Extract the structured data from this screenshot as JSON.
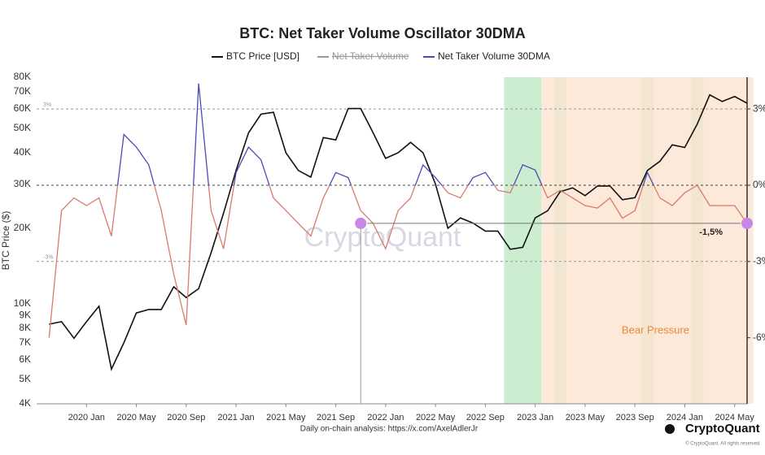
{
  "chart_data": {
    "type": "line",
    "title": "BTC: Net Taker Volume Oscillator 30DMA",
    "y_label": "BTC Price ($)",
    "log_y": true,
    "x": [
      "2019-10",
      "2019-11",
      "2019-12",
      "2020-01",
      "2020-02",
      "2020-03",
      "2020-04",
      "2020-05",
      "2020-06",
      "2020-07",
      "2020-08",
      "2020-09",
      "2020-10",
      "2020-11",
      "2020-12",
      "2021-01",
      "2021-02",
      "2021-03",
      "2021-04",
      "2021-05",
      "2021-06",
      "2021-07",
      "2021-08",
      "2021-09",
      "2021-10",
      "2021-11",
      "2021-12",
      "2022-01",
      "2022-02",
      "2022-03",
      "2022-04",
      "2022-05",
      "2022-06",
      "2022-07",
      "2022-08",
      "2022-09",
      "2022-10",
      "2022-11",
      "2022-12",
      "2023-01",
      "2023-02",
      "2023-03",
      "2023-04",
      "2023-05",
      "2023-06",
      "2023-07",
      "2023-08",
      "2023-09",
      "2023-10",
      "2023-11",
      "2023-12",
      "2024-01",
      "2024-02",
      "2024-03",
      "2024-04",
      "2024-05",
      "2024-06"
    ],
    "xlim": [
      "2019-09",
      "2024-06"
    ],
    "xticks": [
      {
        "value": "2020-01",
        "label": "2020 Jan"
      },
      {
        "value": "2020-05",
        "label": "2020 May"
      },
      {
        "value": "2020-09",
        "label": "2020 Sep"
      },
      {
        "value": "2021-01",
        "label": "2021 Jan"
      },
      {
        "value": "2021-05",
        "label": "2021 May"
      },
      {
        "value": "2021-09",
        "label": "2021 Sep"
      },
      {
        "value": "2022-01",
        "label": "2022 Jan"
      },
      {
        "value": "2022-05",
        "label": "2022 May"
      },
      {
        "value": "2022-09",
        "label": "2022 Sep"
      },
      {
        "value": "2023-01",
        "label": "2023 Jan"
      },
      {
        "value": "2023-05",
        "label": "2023 May"
      },
      {
        "value": "2023-09",
        "label": "2023 Sep"
      },
      {
        "value": "2024-01",
        "label": "2024 Jan"
      },
      {
        "value": "2024-05",
        "label": "2024 May"
      }
    ],
    "ylim": [
      4000,
      80000
    ],
    "yticks": [
      {
        "value": 4000,
        "label": "4K"
      },
      {
        "value": 5000,
        "label": "5K"
      },
      {
        "value": 6000,
        "label": "6K"
      },
      {
        "value": 7000,
        "label": "7K"
      },
      {
        "value": 8000,
        "label": "8K"
      },
      {
        "value": 9000,
        "label": "9K"
      },
      {
        "value": 10000,
        "label": "10K"
      },
      {
        "value": 20000,
        "label": "20K"
      },
      {
        "value": 30000,
        "label": "30K"
      },
      {
        "value": 40000,
        "label": "40K"
      },
      {
        "value": 50000,
        "label": "50K"
      },
      {
        "value": 60000,
        "label": "60K"
      },
      {
        "value": 70000,
        "label": "70K"
      },
      {
        "value": 80000,
        "label": "80K"
      }
    ],
    "y2lim": [
      -8.6,
      4.25
    ],
    "y2ticks": [
      {
        "value": 3,
        "label": "3%"
      },
      {
        "value": 0,
        "label": "0%"
      },
      {
        "value": -3,
        "label": "-3%"
      },
      {
        "value": -6,
        "label": "-6%"
      }
    ],
    "reference_lines": [
      3,
      0,
      -3
    ],
    "series": [
      {
        "name": "BTC Price [USD]",
        "color": "#111111",
        "values": [
          8300,
          8500,
          7300,
          8500,
          9800,
          5500,
          7000,
          9200,
          9500,
          9500,
          11700,
          10600,
          11500,
          16000,
          23000,
          34000,
          48000,
          57000,
          58000,
          40000,
          34000,
          32000,
          46000,
          45000,
          60000,
          60000,
          48000,
          38000,
          40000,
          44000,
          40000,
          30000,
          20000,
          22000,
          21000,
          19500,
          19500,
          16500,
          16800,
          22000,
          23500,
          28000,
          29000,
          27000,
          29500,
          29500,
          26000,
          26500,
          34000,
          37000,
          43000,
          42000,
          52000,
          68000,
          64000,
          67000,
          63000
        ]
      },
      {
        "name": "Net Taker Volume",
        "color": "#999999",
        "hidden": true
      },
      {
        "name": "Net Taker Volume  30DMA",
        "color": "#4a4ab8",
        "negative_color": "#d97a6c",
        "axis": "y2",
        "values": [
          -6,
          -1,
          -0.5,
          -0.8,
          -0.5,
          -2,
          2,
          1.5,
          0.8,
          -1,
          -3.5,
          -5.5,
          4,
          -1,
          -2.5,
          0.5,
          1.5,
          1,
          -0.5,
          -1,
          -1.5,
          -2,
          -0.5,
          0.5,
          0.3,
          -1,
          -1.5,
          -2.5,
          -1,
          -0.5,
          0.8,
          0.3,
          -0.3,
          -0.5,
          0.3,
          0.5,
          -0.2,
          -0.3,
          0.8,
          0.6,
          -0.5,
          -0.2,
          -0.5,
          -0.8,
          -0.9,
          -0.5,
          -1.3,
          -1,
          0.5,
          -0.5,
          -0.8,
          -0.3,
          0,
          -0.8,
          -0.8,
          -0.8,
          -1.5
        ]
      }
    ],
    "bands": [
      {
        "start": "2022-11",
        "end": "2023-01",
        "color": "#bfe8c4"
      },
      {
        "start": "2023-03",
        "end": "2023-03",
        "color": "#bfe8c4"
      },
      {
        "start": "2023-10",
        "end": "2023-10",
        "color": "#bfe8c4"
      },
      {
        "start": "2024-02",
        "end": "2024-02",
        "color": "#bfe8c4"
      },
      {
        "start": "2023-02",
        "end": "2024-06",
        "color": "#fde3cf"
      }
    ],
    "threshold": {
      "x_start": "2021-11",
      "x_end": "2024-06",
      "y": -1.5,
      "label": "-1,5%"
    },
    "band_label": "Bear Pressure",
    "watermark": "CryptoQuant",
    "footer": "Daily on-chain analysis: https://x.com/AxelAdlerJr",
    "brand": "CryptoQuant",
    "copyright": "© CryptoQuant. All rights reserved."
  }
}
